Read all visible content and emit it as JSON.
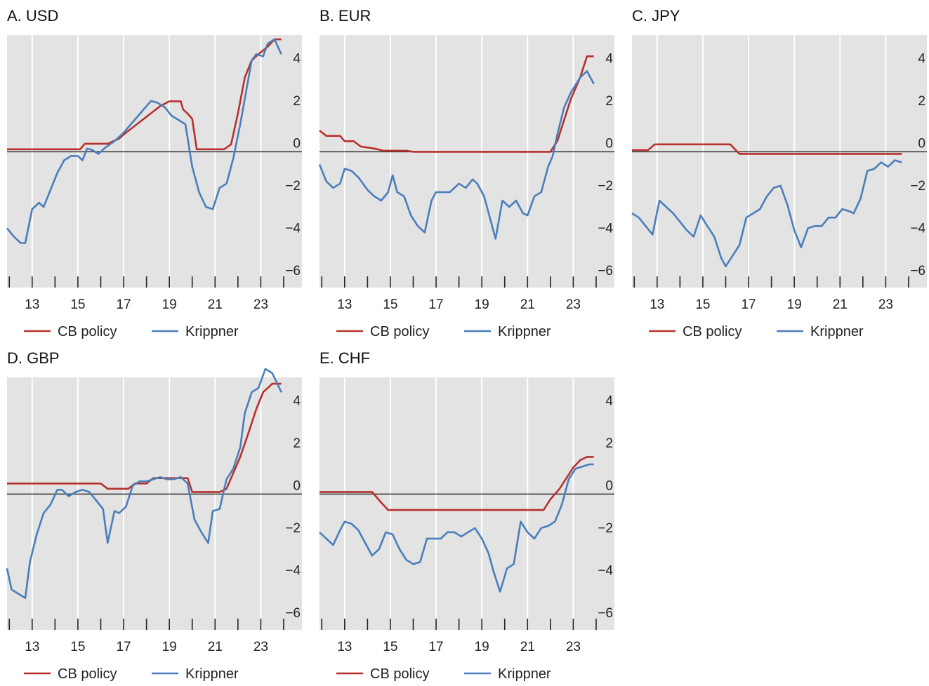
{
  "colors": {
    "cb_policy": "#b7312c",
    "krippner": "#4a7ebb",
    "plot_bg": "#e3e3e3",
    "grid": "#ffffff",
    "zero_line": "#333333"
  },
  "legend": {
    "cb_policy": "CB policy",
    "krippner": "Krippner"
  },
  "chart_data": [
    {
      "type": "line",
      "title": "A. USD",
      "x_tick_labels": [
        "13",
        "15",
        "17",
        "19",
        "21",
        "23"
      ],
      "x_ticks": [
        2013,
        2015,
        2017,
        2019,
        2021,
        2023
      ],
      "xlim": [
        2011.9,
        2024.8
      ],
      "ylim": [
        -6.4,
        5.5
      ],
      "yticks": [
        -6,
        -4,
        -2,
        0,
        2,
        4
      ],
      "series": [
        {
          "name": "CB policy",
          "color": "#b7312c",
          "x": [
            2011.9,
            2015.1,
            2015.3,
            2016.3,
            2016.8,
            2017.1,
            2017.4,
            2018.3,
            2018.6,
            2019.0,
            2019.2,
            2019.5,
            2019.6,
            2019.8,
            2020.0,
            2020.2,
            2021.0,
            2021.4,
            2021.7,
            2022.0,
            2022.3,
            2022.6,
            2022.9,
            2023.3,
            2023.6,
            2023.9
          ],
          "y": [
            0.12,
            0.12,
            0.38,
            0.38,
            0.62,
            0.9,
            1.15,
            1.9,
            2.15,
            2.38,
            2.38,
            2.38,
            2.0,
            1.8,
            1.55,
            0.12,
            0.12,
            0.12,
            0.35,
            1.8,
            3.5,
            4.3,
            4.6,
            4.95,
            5.3,
            5.3
          ]
        },
        {
          "name": "Krippner",
          "color": "#4a7ebb",
          "x": [
            2011.9,
            2012.2,
            2012.5,
            2012.7,
            2013.0,
            2013.3,
            2013.5,
            2013.8,
            2014.1,
            2014.4,
            2014.7,
            2015.0,
            2015.2,
            2015.4,
            2015.6,
            2015.9,
            2016.2,
            2016.6,
            2017.0,
            2017.4,
            2017.8,
            2018.2,
            2018.5,
            2018.8,
            2019.1,
            2019.4,
            2019.7,
            2020.0,
            2020.3,
            2020.6,
            2020.9,
            2021.2,
            2021.5,
            2021.8,
            2022.1,
            2022.4,
            2022.6,
            2022.8,
            2023.1,
            2023.3,
            2023.6,
            2023.9
          ],
          "y": [
            -3.6,
            -4.0,
            -4.3,
            -4.3,
            -2.7,
            -2.4,
            -2.6,
            -1.8,
            -1.0,
            -0.4,
            -0.2,
            -0.2,
            -0.4,
            0.15,
            0.1,
            -0.1,
            0.2,
            0.5,
            0.9,
            1.4,
            1.9,
            2.4,
            2.3,
            2.1,
            1.7,
            1.5,
            1.3,
            -0.7,
            -1.9,
            -2.6,
            -2.7,
            -1.7,
            -1.5,
            -0.3,
            1.3,
            3.1,
            4.3,
            4.6,
            4.5,
            5.1,
            5.3,
            4.6
          ]
        }
      ]
    },
    {
      "type": "line",
      "title": "B. EUR",
      "x_tick_labels": [
        "13",
        "15",
        "17",
        "19",
        "21",
        "23"
      ],
      "x_ticks": [
        2013,
        2015,
        2017,
        2019,
        2021,
        2023
      ],
      "xlim": [
        2011.9,
        2024.8
      ],
      "ylim": [
        -6.4,
        5.5
      ],
      "yticks": [
        -6,
        -4,
        -2,
        0,
        2,
        4
      ],
      "series": [
        {
          "name": "CB policy",
          "color": "#b7312c",
          "x": [
            2011.9,
            2012.2,
            2012.8,
            2013.0,
            2013.4,
            2013.7,
            2014.3,
            2014.7,
            2015.7,
            2016.0,
            2022.0,
            2022.3,
            2022.6,
            2022.9,
            2023.3,
            2023.6,
            2023.9
          ],
          "y": [
            1.0,
            0.75,
            0.75,
            0.5,
            0.5,
            0.25,
            0.15,
            0.05,
            0.05,
            0.0,
            0.0,
            0.5,
            1.5,
            2.5,
            3.5,
            4.5,
            4.5
          ]
        },
        {
          "name": "Krippner",
          "color": "#4a7ebb",
          "x": [
            2011.9,
            2012.2,
            2012.5,
            2012.8,
            2013.0,
            2013.3,
            2013.6,
            2014.0,
            2014.3,
            2014.6,
            2014.9,
            2015.1,
            2015.3,
            2015.6,
            2015.9,
            2016.2,
            2016.5,
            2016.8,
            2017.0,
            2017.3,
            2017.6,
            2018.0,
            2018.3,
            2018.6,
            2018.8,
            2019.1,
            2019.4,
            2019.6,
            2019.9,
            2020.2,
            2020.5,
            2020.8,
            2021.0,
            2021.3,
            2021.6,
            2021.9,
            2022.1,
            2022.3,
            2022.6,
            2022.9,
            2023.3,
            2023.6,
            2023.9
          ],
          "y": [
            -0.6,
            -1.4,
            -1.7,
            -1.5,
            -0.8,
            -0.9,
            -1.2,
            -1.8,
            -2.1,
            -2.3,
            -1.9,
            -1.1,
            -1.9,
            -2.1,
            -3.0,
            -3.5,
            -3.8,
            -2.3,
            -1.9,
            -1.9,
            -1.9,
            -1.5,
            -1.7,
            -1.3,
            -1.5,
            -2.1,
            -3.3,
            -4.1,
            -2.3,
            -2.6,
            -2.3,
            -2.9,
            -3.0,
            -2.1,
            -1.9,
            -0.7,
            -0.2,
            0.8,
            2.1,
            2.8,
            3.5,
            3.8,
            3.2
          ]
        }
      ]
    },
    {
      "type": "line",
      "title": "C. JPY",
      "x_tick_labels": [
        "13",
        "15",
        "17",
        "19",
        "21",
        "23"
      ],
      "x_ticks": [
        2013,
        2015,
        2017,
        2019,
        2021,
        2023
      ],
      "xlim": [
        2011.9,
        2024.8
      ],
      "ylim": [
        -6.4,
        5.5
      ],
      "yticks": [
        -6,
        -4,
        -2,
        0,
        2,
        4
      ],
      "series": [
        {
          "name": "CB policy",
          "color": "#b7312c",
          "x": [
            2011.9,
            2012.6,
            2012.9,
            2016.2,
            2016.6,
            2023.7
          ],
          "y": [
            0.08,
            0.08,
            0.35,
            0.35,
            -0.1,
            -0.1
          ]
        },
        {
          "name": "Krippner",
          "color": "#4a7ebb",
          "x": [
            2011.9,
            2012.2,
            2012.5,
            2012.8,
            2013.1,
            2013.4,
            2013.7,
            2014.0,
            2014.3,
            2014.6,
            2014.9,
            2015.2,
            2015.5,
            2015.8,
            2016.0,
            2016.3,
            2016.6,
            2016.9,
            2017.2,
            2017.5,
            2017.8,
            2018.1,
            2018.4,
            2018.7,
            2019.0,
            2019.3,
            2019.6,
            2019.9,
            2020.2,
            2020.5,
            2020.8,
            2021.1,
            2021.4,
            2021.6,
            2021.9,
            2022.2,
            2022.5,
            2022.8,
            2023.1,
            2023.4,
            2023.7
          ],
          "y": [
            -2.9,
            -3.1,
            -3.5,
            -3.9,
            -2.3,
            -2.6,
            -2.9,
            -3.3,
            -3.7,
            -4.0,
            -3.0,
            -3.5,
            -4.0,
            -5.0,
            -5.4,
            -4.9,
            -4.4,
            -3.1,
            -2.9,
            -2.7,
            -2.1,
            -1.7,
            -1.6,
            -2.5,
            -3.7,
            -4.5,
            -3.6,
            -3.5,
            -3.5,
            -3.1,
            -3.1,
            -2.7,
            -2.8,
            -2.9,
            -2.2,
            -0.9,
            -0.8,
            -0.5,
            -0.7,
            -0.4,
            -0.5
          ]
        }
      ]
    },
    {
      "type": "line",
      "title": "D. GBP",
      "x_tick_labels": [
        "13",
        "15",
        "17",
        "19",
        "21",
        "23"
      ],
      "x_ticks": [
        2013,
        2015,
        2017,
        2019,
        2021,
        2023
      ],
      "xlim": [
        2011.9,
        2024.8
      ],
      "ylim": [
        -6.4,
        5.5
      ],
      "yticks": [
        -6,
        -4,
        -2,
        0,
        2,
        4
      ],
      "series": [
        {
          "name": "CB policy",
          "color": "#b7312c",
          "x": [
            2011.9,
            2016.0,
            2016.3,
            2017.2,
            2017.5,
            2018.0,
            2018.3,
            2019.8,
            2020.0,
            2021.2,
            2021.5,
            2021.8,
            2022.1,
            2022.5,
            2022.8,
            2023.1,
            2023.5,
            2023.9
          ],
          "y": [
            0.5,
            0.5,
            0.25,
            0.25,
            0.5,
            0.5,
            0.75,
            0.75,
            0.1,
            0.1,
            0.25,
            1.0,
            1.75,
            3.0,
            4.0,
            4.8,
            5.2,
            5.2
          ]
        },
        {
          "name": "Krippner",
          "color": "#4a7ebb",
          "x": [
            2011.9,
            2012.1,
            2012.4,
            2012.7,
            2012.9,
            2013.2,
            2013.5,
            2013.8,
            2014.1,
            2014.3,
            2014.6,
            2014.9,
            2015.2,
            2015.5,
            2015.8,
            2016.1,
            2016.3,
            2016.6,
            2016.8,
            2017.1,
            2017.4,
            2017.7,
            2018.0,
            2018.3,
            2018.6,
            2018.9,
            2019.2,
            2019.5,
            2019.8,
            2020.1,
            2020.4,
            2020.7,
            2020.9,
            2021.2,
            2021.5,
            2021.8,
            2022.1,
            2022.3,
            2022.6,
            2022.9,
            2023.2,
            2023.5,
            2023.9
          ],
          "y": [
            -3.5,
            -4.5,
            -4.7,
            -4.9,
            -3.2,
            -1.9,
            -0.9,
            -0.5,
            0.2,
            0.2,
            -0.1,
            0.1,
            0.2,
            0.1,
            -0.3,
            -0.7,
            -2.3,
            -0.8,
            -0.9,
            -0.6,
            0.4,
            0.6,
            0.6,
            0.7,
            0.8,
            0.7,
            0.7,
            0.8,
            0.5,
            -1.2,
            -1.8,
            -2.3,
            -0.8,
            -0.7,
            0.7,
            1.2,
            2.2,
            3.8,
            4.8,
            5.0,
            5.9,
            5.7,
            4.8
          ]
        }
      ]
    },
    {
      "type": "line",
      "title": "E. CHF",
      "x_tick_labels": [
        "13",
        "15",
        "17",
        "19",
        "21",
        "23"
      ],
      "x_ticks": [
        2013,
        2015,
        2017,
        2019,
        2021,
        2023
      ],
      "xlim": [
        2011.9,
        2024.8
      ],
      "ylim": [
        -6.4,
        5.5
      ],
      "yticks": [
        -6,
        -4,
        -2,
        0,
        2,
        4
      ],
      "series": [
        {
          "name": "CB policy",
          "color": "#b7312c",
          "x": [
            2011.9,
            2014.2,
            2014.6,
            2014.9,
            2021.7,
            2022.0,
            2022.4,
            2022.7,
            2023.0,
            2023.3,
            2023.6,
            2023.9
          ],
          "y": [
            0.1,
            0.1,
            -0.4,
            -0.75,
            -0.75,
            -0.25,
            0.25,
            0.75,
            1.25,
            1.6,
            1.75,
            1.75
          ]
        },
        {
          "name": "Krippner",
          "color": "#4a7ebb",
          "x": [
            2011.9,
            2012.2,
            2012.5,
            2012.8,
            2013.0,
            2013.3,
            2013.6,
            2013.9,
            2014.2,
            2014.5,
            2014.8,
            2015.1,
            2015.4,
            2015.7,
            2016.0,
            2016.3,
            2016.6,
            2016.9,
            2017.2,
            2017.5,
            2017.8,
            2018.1,
            2018.4,
            2018.7,
            2019.0,
            2019.3,
            2019.5,
            2019.8,
            2020.1,
            2020.4,
            2020.7,
            2021.0,
            2021.3,
            2021.6,
            2021.9,
            2022.2,
            2022.5,
            2022.8,
            2023.1,
            2023.4,
            2023.7,
            2023.9
          ],
          "y": [
            -1.8,
            -2.1,
            -2.4,
            -1.7,
            -1.3,
            -1.4,
            -1.7,
            -2.3,
            -2.9,
            -2.6,
            -1.8,
            -1.9,
            -2.6,
            -3.1,
            -3.3,
            -3.2,
            -2.1,
            -2.1,
            -2.1,
            -1.8,
            -1.8,
            -2.0,
            -1.8,
            -1.6,
            -2.1,
            -2.8,
            -3.6,
            -4.6,
            -3.5,
            -3.3,
            -1.3,
            -1.8,
            -2.1,
            -1.6,
            -1.5,
            -1.3,
            -0.5,
            0.7,
            1.2,
            1.3,
            1.4,
            1.4
          ]
        }
      ]
    }
  ]
}
